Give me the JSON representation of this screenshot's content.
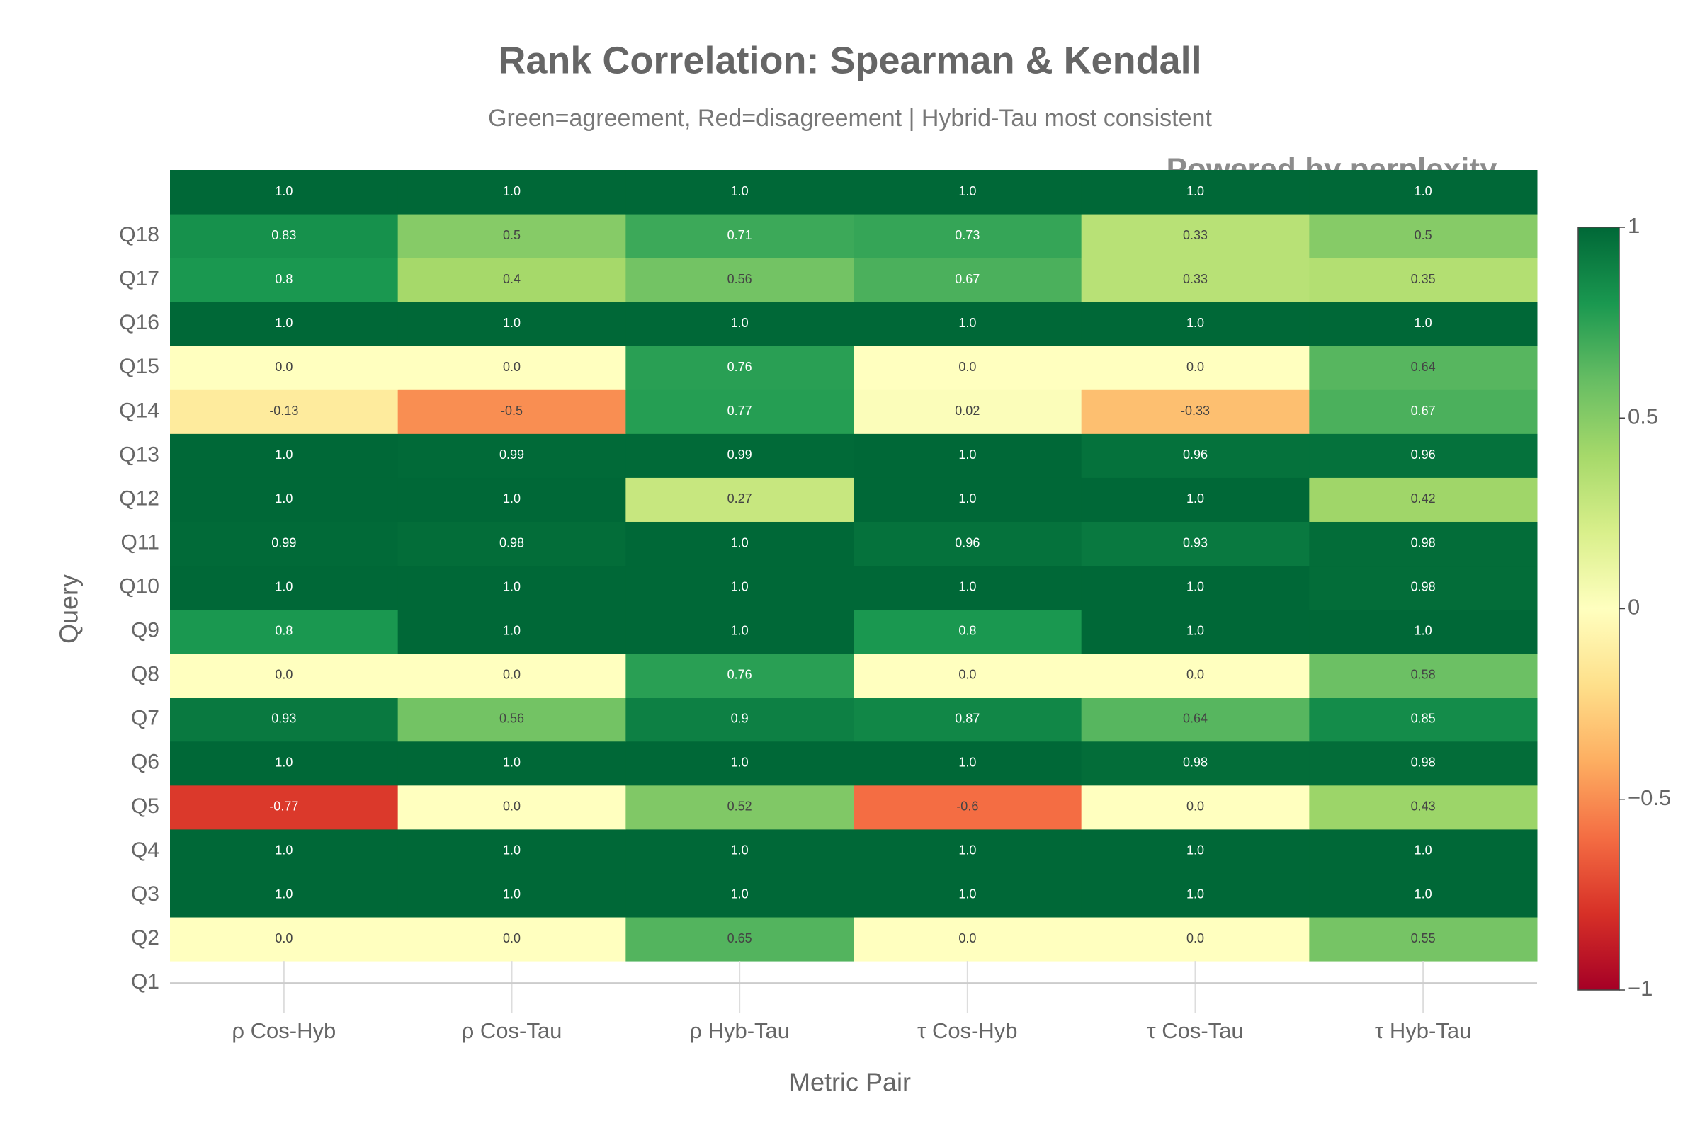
{
  "chart_data": {
    "type": "heatmap",
    "title": "Rank Correlation: Spearman & Kendall",
    "subtitle": "Green=agreement, Red=disagreement | Hybrid-Tau most consistent",
    "watermark": "Powered by perplexity",
    "x_label": "Metric Pair",
    "y_label": "Query",
    "categories": [
      "ρ Cos-Hyb",
      "ρ Cos-Tau",
      "ρ Hyb-Tau",
      "τ Cos-Hyb",
      "τ Cos-Tau",
      "τ Hyb-Tau"
    ],
    "y_categories": [
      "Q1",
      "Q2",
      "Q3",
      "Q4",
      "Q5",
      "Q6",
      "Q7",
      "Q8",
      "Q9",
      "Q10",
      "Q11",
      "Q12",
      "Q13",
      "Q14",
      "Q15",
      "Q16",
      "Q17",
      "Q18",
      null
    ],
    "values": [
      [
        null,
        null,
        null,
        null,
        null,
        null
      ],
      [
        0.0,
        0.0,
        0.65,
        0.0,
        0.0,
        0.55
      ],
      [
        1.0,
        1.0,
        1.0,
        1.0,
        1.0,
        1.0
      ],
      [
        1.0,
        1.0,
        1.0,
        1.0,
        1.0,
        1.0
      ],
      [
        -0.77,
        0.0,
        0.52,
        -0.6,
        0.0,
        0.43
      ],
      [
        1.0,
        1.0,
        1.0,
        1.0,
        0.98,
        0.98
      ],
      [
        0.93,
        0.56,
        0.9,
        0.87,
        0.64,
        0.85
      ],
      [
        0.0,
        0.0,
        0.76,
        0.0,
        0.0,
        0.58
      ],
      [
        0.8,
        1.0,
        1.0,
        0.8,
        1.0,
        1.0
      ],
      [
        1.0,
        1.0,
        1.0,
        1.0,
        1.0,
        0.98
      ],
      [
        0.99,
        0.98,
        1.0,
        0.96,
        0.93,
        0.98
      ],
      [
        1.0,
        1.0,
        0.27,
        1.0,
        1.0,
        0.42
      ],
      [
        1.0,
        0.99,
        0.99,
        1.0,
        0.96,
        0.96
      ],
      [
        -0.13,
        -0.5,
        0.77,
        0.02,
        -0.33,
        0.67
      ],
      [
        0.0,
        0.0,
        0.76,
        0.0,
        0.0,
        0.64
      ],
      [
        1.0,
        1.0,
        1.0,
        1.0,
        1.0,
        1.0
      ],
      [
        0.8,
        0.4,
        0.56,
        0.67,
        0.33,
        0.35
      ],
      [
        0.83,
        0.5,
        0.71,
        0.73,
        0.33,
        0.5
      ],
      [
        1.0,
        1.0,
        1.0,
        1.0,
        1.0,
        1.0
      ]
    ],
    "value_labels": [
      [
        null,
        null,
        null,
        null,
        null,
        null
      ],
      [
        "0.0",
        "0.0",
        "0.65",
        "0.0",
        "0.0",
        "0.55"
      ],
      [
        "1.0",
        "1.0",
        "1.0",
        "1.0",
        "1.0",
        "1.0"
      ],
      [
        "1.0",
        "1.0",
        "1.0",
        "1.0",
        "1.0",
        "1.0"
      ],
      [
        "-0.77",
        "0.0",
        "0.52",
        "-0.6",
        "0.0",
        "0.43"
      ],
      [
        "1.0",
        "1.0",
        "1.0",
        "1.0",
        "0.98",
        "0.98"
      ],
      [
        "0.93",
        "0.56",
        "0.9",
        "0.87",
        "0.64",
        "0.85"
      ],
      [
        "0.0",
        "0.0",
        "0.76",
        "0.0",
        "0.0",
        "0.58"
      ],
      [
        "0.8",
        "1.0",
        "1.0",
        "0.8",
        "1.0",
        "1.0"
      ],
      [
        "1.0",
        "1.0",
        "1.0",
        "1.0",
        "1.0",
        "0.98"
      ],
      [
        "0.99",
        "0.98",
        "1.0",
        "0.96",
        "0.93",
        "0.98"
      ],
      [
        "1.0",
        "1.0",
        "0.27",
        "1.0",
        "1.0",
        "0.42"
      ],
      [
        "1.0",
        "0.99",
        "0.99",
        "1.0",
        "0.96",
        "0.96"
      ],
      [
        "-0.13",
        "-0.5",
        "0.77",
        "0.02",
        "-0.33",
        "0.67"
      ],
      [
        "0.0",
        "0.0",
        "0.76",
        "0.0",
        "0.0",
        "0.64"
      ],
      [
        "1.0",
        "1.0",
        "1.0",
        "1.0",
        "1.0",
        "1.0"
      ],
      [
        "0.8",
        "0.4",
        "0.56",
        "0.67",
        "0.33",
        "0.35"
      ],
      [
        "0.83",
        "0.5",
        "0.71",
        "0.73",
        "0.33",
        "0.5"
      ],
      [
        "1.0",
        "1.0",
        "1.0",
        "1.0",
        "1.0",
        "1.0"
      ]
    ],
    "colorscale": [
      "#a50026",
      "#d73027",
      "#f46d43",
      "#fdae61",
      "#fee08b",
      "#ffffbf",
      "#d9ef8b",
      "#a6d96a",
      "#66bd63",
      "#1a9850",
      "#006837"
    ],
    "zlim": [
      -1,
      1
    ],
    "zticks": [
      1,
      0.5,
      0,
      {
        "value": -0.5,
        "label": "−0.5"
      },
      {
        "value": -1,
        "label": "−1"
      }
    ]
  }
}
